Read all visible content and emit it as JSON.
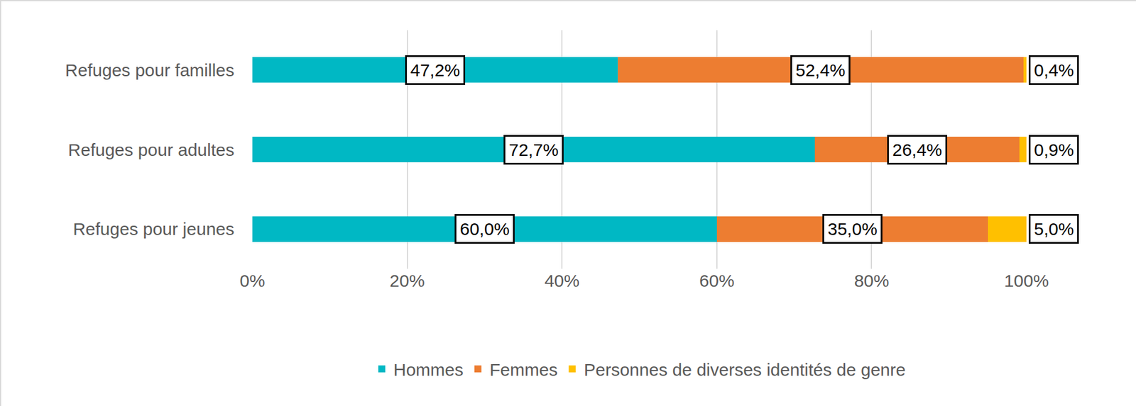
{
  "chart_data": {
    "type": "bar",
    "orientation": "horizontal",
    "stacked": true,
    "data_labels": true,
    "grid": true,
    "legend": "bottom",
    "categories": [
      "Refuges pour familles",
      "Refuges pour adultes",
      "Refuges pour jeunes"
    ],
    "series": [
      {
        "name": "Hommes",
        "color": "#00B8C4",
        "values": [
          47.2,
          72.7,
          60.0
        ],
        "value_labels": [
          "47,2%",
          "72,7%",
          "60,0%"
        ]
      },
      {
        "name": "Femmes",
        "color": "#ED7D31",
        "values": [
          52.4,
          26.4,
          35.0
        ],
        "value_labels": [
          "52,4%",
          "26,4%",
          "35,0%"
        ]
      },
      {
        "name": "Personnes de diverses identités de genre",
        "color": "#FFC000",
        "values": [
          0.4,
          0.9,
          5.0
        ],
        "value_labels": [
          "0,4%",
          "0,9%",
          "5,0%"
        ]
      }
    ],
    "xlim": [
      0,
      100
    ],
    "xticks": [
      {
        "value": 0,
        "label": "0%"
      },
      {
        "value": 20,
        "label": "20%"
      },
      {
        "value": 40,
        "label": "40%"
      },
      {
        "value": 60,
        "label": "60%"
      },
      {
        "value": 80,
        "label": "80%"
      },
      {
        "value": 100,
        "label": "100%"
      }
    ]
  }
}
